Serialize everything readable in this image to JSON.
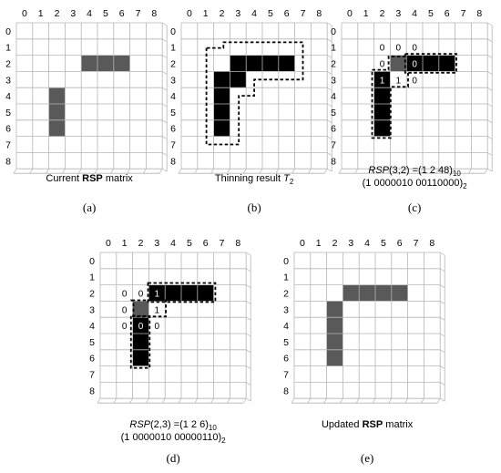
{
  "axis_labels": [
    "0",
    "1",
    "2",
    "3",
    "4",
    "5",
    "6",
    "7",
    "8"
  ],
  "colors": {
    "grid": "#b5b5b5",
    "gray_cell": "#595959",
    "black_cell": "#000000",
    "text": "#000000"
  },
  "panels": [
    {
      "id": "a",
      "tag": "(a)",
      "caption_lines": [
        [
          {
            "t": "Current "
          },
          {
            "t": "RSP",
            "b": true
          },
          {
            "t": " matrix"
          }
        ]
      ],
      "cells": [
        {
          "r": 2,
          "c": 4,
          "fill": "gray"
        },
        {
          "r": 2,
          "c": 5,
          "fill": "gray"
        },
        {
          "r": 2,
          "c": 6,
          "fill": "gray"
        },
        {
          "r": 4,
          "c": 2,
          "fill": "gray"
        },
        {
          "r": 5,
          "c": 2,
          "fill": "gray"
        },
        {
          "r": 6,
          "c": 2,
          "fill": "gray"
        }
      ],
      "texts": [],
      "dashed": []
    },
    {
      "id": "b",
      "tag": "(b)",
      "caption_lines": [
        [
          {
            "t": "Thinning result "
          },
          {
            "t": "T",
            "i": true
          },
          {
            "t": "2",
            "sub": true
          }
        ]
      ],
      "cells": [
        {
          "r": 2,
          "c": 3,
          "fill": "black"
        },
        {
          "r": 2,
          "c": 4,
          "fill": "black"
        },
        {
          "r": 2,
          "c": 5,
          "fill": "black"
        },
        {
          "r": 2,
          "c": 6,
          "fill": "black"
        },
        {
          "r": 3,
          "c": 2,
          "fill": "black"
        },
        {
          "r": 3,
          "c": 3,
          "fill": "black"
        },
        {
          "r": 4,
          "c": 2,
          "fill": "black"
        },
        {
          "r": 5,
          "c": 2,
          "fill": "black"
        },
        {
          "r": 6,
          "c": 2,
          "fill": "black"
        }
      ],
      "texts": [],
      "dashed": [
        {
          "pts": [
            [
              1.55,
              1.55
            ],
            [
              1.55,
              7.5
            ],
            [
              3.55,
              7.5
            ],
            [
              3.55,
              4.5
            ],
            [
              4.5,
              4.5
            ],
            [
              4.5,
              3.5
            ],
            [
              7.5,
              3.5
            ],
            [
              7.5,
              1.2
            ],
            [
              2.6,
              1.2
            ],
            [
              2.6,
              1.55
            ]
          ]
        }
      ]
    },
    {
      "id": "c",
      "tag": "(c)",
      "caption_lines": [
        [
          {
            "t": "RSP",
            "i": true
          },
          {
            "t": "(3,2) =(1 2 48)"
          },
          {
            "t": "10",
            "sub": true
          }
        ],
        [
          {
            "t": "(1 0000010 00110000)"
          },
          {
            "t": "2",
            "sub": true
          }
        ]
      ],
      "cells": [
        {
          "r": 2,
          "c": 3,
          "fill": "gray"
        },
        {
          "r": 2,
          "c": 4,
          "fill": "black"
        },
        {
          "r": 2,
          "c": 5,
          "fill": "black"
        },
        {
          "r": 2,
          "c": 6,
          "fill": "black"
        },
        {
          "r": 3,
          "c": 2,
          "fill": "black"
        },
        {
          "r": 4,
          "c": 2,
          "fill": "black"
        },
        {
          "r": 5,
          "c": 2,
          "fill": "black"
        },
        {
          "r": 6,
          "c": 2,
          "fill": "black"
        }
      ],
      "texts": [
        {
          "r": 1,
          "c": 2,
          "v": "0",
          "color": "black"
        },
        {
          "r": 1,
          "c": 3,
          "v": "0",
          "color": "black"
        },
        {
          "r": 1,
          "c": 4,
          "v": "0",
          "color": "black"
        },
        {
          "r": 2,
          "c": 2,
          "v": "0",
          "color": "black"
        },
        {
          "r": 2,
          "c": 4,
          "v": "0",
          "color": "white"
        },
        {
          "r": 3,
          "c": 2,
          "v": "1",
          "color": "white"
        },
        {
          "r": 3,
          "c": 3,
          "v": "1",
          "color": "black"
        },
        {
          "r": 3,
          "c": 4,
          "v": "0",
          "color": "black"
        }
      ],
      "dashed": [
        {
          "pts": [
            [
              3.92,
              1.92
            ],
            [
              7.08,
              1.92
            ],
            [
              7.08,
              3.08
            ],
            [
              3.92,
              3.08
            ]
          ]
        },
        {
          "pts": [
            [
              1.88,
              2.9
            ],
            [
              2.9,
              2.9
            ],
            [
              2.9,
              2.08
            ],
            [
              4.1,
              2.08
            ],
            [
              4.1,
              3.95
            ],
            [
              3.02,
              3.95
            ],
            [
              3.02,
              7.1
            ],
            [
              1.88,
              7.1
            ]
          ]
        }
      ]
    },
    {
      "id": "d",
      "tag": "(d)",
      "caption_lines": [
        [
          {
            "t": "RSP",
            "i": true
          },
          {
            "t": "(2,3) =(1 2 6)"
          },
          {
            "t": "10",
            "sub": true
          }
        ],
        [
          {
            "t": "(1 0000010 00000110)"
          },
          {
            "t": "2",
            "sub": true
          }
        ]
      ],
      "cells": [
        {
          "r": 2,
          "c": 3,
          "fill": "black"
        },
        {
          "r": 2,
          "c": 4,
          "fill": "black"
        },
        {
          "r": 2,
          "c": 5,
          "fill": "black"
        },
        {
          "r": 2,
          "c": 6,
          "fill": "black"
        },
        {
          "r": 3,
          "c": 2,
          "fill": "gray"
        },
        {
          "r": 4,
          "c": 2,
          "fill": "black"
        },
        {
          "r": 5,
          "c": 2,
          "fill": "black"
        },
        {
          "r": 6,
          "c": 2,
          "fill": "black"
        }
      ],
      "texts": [
        {
          "r": 2,
          "c": 1,
          "v": "0",
          "color": "black"
        },
        {
          "r": 2,
          "c": 2,
          "v": "0",
          "color": "black"
        },
        {
          "r": 2,
          "c": 3,
          "v": "1",
          "color": "white"
        },
        {
          "r": 3,
          "c": 1,
          "v": "0",
          "color": "black"
        },
        {
          "r": 3,
          "c": 3,
          "v": "1",
          "color": "black"
        },
        {
          "r": 4,
          "c": 1,
          "v": "0",
          "color": "black"
        },
        {
          "r": 4,
          "c": 2,
          "v": "0",
          "color": "white"
        },
        {
          "r": 4,
          "c": 3,
          "v": "0",
          "color": "black"
        }
      ],
      "dashed": [
        {
          "pts": [
            [
              2.95,
              1.88
            ],
            [
              7.1,
              1.88
            ],
            [
              7.1,
              3.05
            ],
            [
              2.95,
              3.05
            ]
          ]
        },
        {
          "pts": [
            [
              1.9,
              3.92
            ],
            [
              1.9,
              7.12
            ],
            [
              3.05,
              7.12
            ],
            [
              3.05,
              3.92
            ]
          ]
        },
        {
          "pts": [
            [
              1.95,
              2.95
            ],
            [
              4.05,
              2.95
            ],
            [
              4.05,
              3.95
            ],
            [
              2.05,
              3.95
            ],
            [
              2.05,
              3.05
            ]
          ]
        }
      ]
    },
    {
      "id": "e",
      "tag": "(e)",
      "caption_lines": [
        [
          {
            "t": "Updated "
          },
          {
            "t": "RSP",
            "b": true
          },
          {
            "t": " matrix"
          }
        ]
      ],
      "cells": [
        {
          "r": 2,
          "c": 3,
          "fill": "gray"
        },
        {
          "r": 2,
          "c": 4,
          "fill": "gray"
        },
        {
          "r": 2,
          "c": 5,
          "fill": "gray"
        },
        {
          "r": 2,
          "c": 6,
          "fill": "gray"
        },
        {
          "r": 3,
          "c": 2,
          "fill": "gray"
        },
        {
          "r": 4,
          "c": 2,
          "fill": "gray"
        },
        {
          "r": 5,
          "c": 2,
          "fill": "gray"
        },
        {
          "r": 6,
          "c": 2,
          "fill": "gray"
        }
      ],
      "texts": [],
      "dashed": []
    }
  ]
}
